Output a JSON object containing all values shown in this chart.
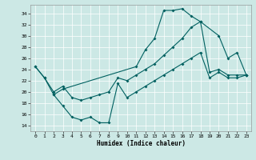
{
  "xlabel": "Humidex (Indice chaleur)",
  "bg_color": "#cce8e5",
  "grid_color": "#ffffff",
  "line_color": "#006060",
  "xlim": [
    -0.5,
    23.5
  ],
  "ylim": [
    13.0,
    35.5
  ],
  "xticks": [
    0,
    1,
    2,
    3,
    4,
    5,
    6,
    7,
    8,
    9,
    10,
    11,
    12,
    13,
    14,
    15,
    16,
    17,
    18,
    19,
    20,
    21,
    22,
    23
  ],
  "yticks": [
    14,
    16,
    18,
    20,
    22,
    24,
    26,
    28,
    30,
    32,
    34
  ],
  "curve_upper_x": [
    0,
    1,
    2,
    3,
    11,
    12,
    13,
    14,
    15,
    16,
    17,
    18,
    20,
    21,
    22,
    23
  ],
  "curve_upper_y": [
    24.5,
    22.5,
    19.5,
    20.5,
    24.5,
    27.5,
    29.5,
    34.5,
    34.5,
    34.8,
    33.5,
    32.5,
    30.0,
    26.0,
    27.0,
    23.0
  ],
  "curve_mid_x": [
    0,
    1,
    2,
    3,
    4,
    5,
    6,
    7,
    8,
    9,
    10,
    11,
    12,
    13,
    14,
    15,
    16,
    17,
    18,
    19,
    20,
    21,
    22,
    23
  ],
  "curve_mid_y": [
    24.5,
    22.5,
    20.0,
    21.0,
    19.0,
    18.5,
    19.0,
    19.5,
    20.0,
    22.5,
    22.0,
    23.0,
    24.0,
    25.0,
    26.5,
    28.0,
    29.5,
    31.5,
    32.5,
    23.5,
    24.0,
    23.0,
    23.0,
    23.0
  ],
  "curve_lower_x": [
    2,
    3,
    4,
    5,
    6,
    7,
    8,
    9,
    10,
    11,
    12,
    13,
    14,
    15,
    16,
    17,
    18,
    19,
    20,
    21,
    22,
    23
  ],
  "curve_lower_y": [
    19.5,
    17.5,
    15.5,
    15.0,
    15.5,
    14.5,
    14.5,
    21.5,
    19.0,
    20.0,
    21.0,
    22.0,
    23.0,
    24.0,
    25.0,
    26.0,
    27.0,
    22.5,
    23.5,
    22.5,
    22.5,
    23.0
  ],
  "markersize": 2.0,
  "linewidth": 0.8,
  "tick_fontsize": 4.5,
  "xlabel_fontsize": 5.5
}
